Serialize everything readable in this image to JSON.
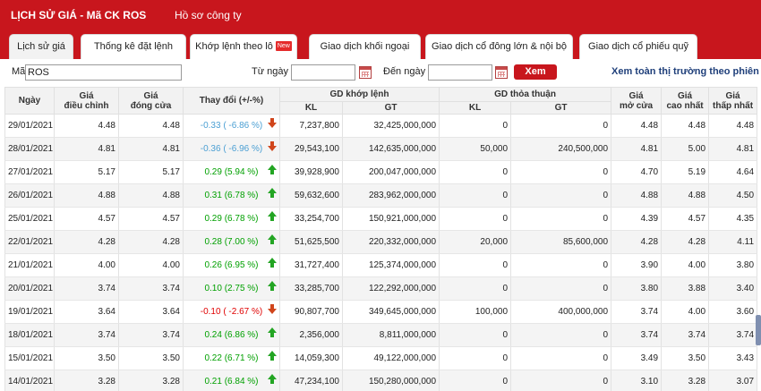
{
  "header": {
    "title": "LỊCH SỬ GIÁ - Mã CK ROS",
    "company_link": "Hồ sơ công ty"
  },
  "tabs": [
    {
      "label": "Lịch sử giá",
      "badge": ""
    },
    {
      "label": "Thống kê đặt lệnh",
      "badge": ""
    },
    {
      "label": "Khớp lệnh theo lô",
      "badge": "New"
    },
    {
      "label": "Giao dịch khối ngoại",
      "badge": ""
    },
    {
      "label": "Giao dịch cổ đông lớn & nội bộ",
      "badge": ""
    },
    {
      "label": "Giao dịch cổ phiếu quỹ",
      "badge": ""
    }
  ],
  "filter": {
    "code_label": "Mã",
    "code_value": "ROS",
    "from_label": "Từ ngày",
    "from_value": "",
    "to_label": "Đến ngày",
    "to_value": "",
    "submit_label": "Xem",
    "view_all_label": "Xem toàn thị trường theo phiên"
  },
  "table": {
    "headers": {
      "date": "Ngày",
      "adj_price": [
        "Giá",
        "điều chỉnh"
      ],
      "close_price": [
        "Giá",
        "đóng cửa"
      ],
      "change": "Thay đổi (+/-%)",
      "matched": "GD khớp lệnh",
      "negotiated": "GD thỏa thuận",
      "kl": "KL",
      "gt": "GT",
      "open_price": [
        "Giá",
        "mở cửa"
      ],
      "high_price": [
        "Giá",
        "cao nhất"
      ],
      "low_price": [
        "Giá",
        "thấp nhất"
      ]
    },
    "rows": [
      {
        "date": "29/01/2021",
        "adj": "4.48",
        "close": "4.48",
        "change": "-0.33 ( -6.86 %)",
        "dir": "down",
        "tone": "blue",
        "m_kl": "7,237,800",
        "m_gt": "32,425,000,000",
        "n_kl": "0",
        "n_gt": "0",
        "open": "4.48",
        "high": "4.48",
        "low": "4.48"
      },
      {
        "date": "28/01/2021",
        "adj": "4.81",
        "close": "4.81",
        "change": "-0.36 ( -6.96 %)",
        "dir": "down",
        "tone": "blue",
        "m_kl": "29,543,100",
        "m_gt": "142,635,000,000",
        "n_kl": "50,000",
        "n_gt": "240,500,000",
        "open": "4.81",
        "high": "5.00",
        "low": "4.81"
      },
      {
        "date": "27/01/2021",
        "adj": "5.17",
        "close": "5.17",
        "change": "0.29 (5.94 %)",
        "dir": "up",
        "tone": "up",
        "m_kl": "39,928,900",
        "m_gt": "200,047,000,000",
        "n_kl": "0",
        "n_gt": "0",
        "open": "4.70",
        "high": "5.19",
        "low": "4.64"
      },
      {
        "date": "26/01/2021",
        "adj": "4.88",
        "close": "4.88",
        "change": "0.31 (6.78 %)",
        "dir": "up",
        "tone": "up",
        "m_kl": "59,632,600",
        "m_gt": "283,962,000,000",
        "n_kl": "0",
        "n_gt": "0",
        "open": "4.88",
        "high": "4.88",
        "low": "4.50"
      },
      {
        "date": "25/01/2021",
        "adj": "4.57",
        "close": "4.57",
        "change": "0.29 (6.78 %)",
        "dir": "up",
        "tone": "up",
        "m_kl": "33,254,700",
        "m_gt": "150,921,000,000",
        "n_kl": "0",
        "n_gt": "0",
        "open": "4.39",
        "high": "4.57",
        "low": "4.35"
      },
      {
        "date": "22/01/2021",
        "adj": "4.28",
        "close": "4.28",
        "change": "0.28 (7.00 %)",
        "dir": "up",
        "tone": "up",
        "m_kl": "51,625,500",
        "m_gt": "220,332,000,000",
        "n_kl": "20,000",
        "n_gt": "85,600,000",
        "open": "4.28",
        "high": "4.28",
        "low": "4.11"
      },
      {
        "date": "21/01/2021",
        "adj": "4.00",
        "close": "4.00",
        "change": "0.26 (6.95 %)",
        "dir": "up",
        "tone": "up",
        "m_kl": "31,727,400",
        "m_gt": "125,374,000,000",
        "n_kl": "0",
        "n_gt": "0",
        "open": "3.90",
        "high": "4.00",
        "low": "3.80"
      },
      {
        "date": "20/01/2021",
        "adj": "3.74",
        "close": "3.74",
        "change": "0.10 (2.75 %)",
        "dir": "up",
        "tone": "up",
        "m_kl": "33,285,700",
        "m_gt": "122,292,000,000",
        "n_kl": "0",
        "n_gt": "0",
        "open": "3.80",
        "high": "3.88",
        "low": "3.40"
      },
      {
        "date": "19/01/2021",
        "adj": "3.64",
        "close": "3.64",
        "change": "-0.10 ( -2.67 %)",
        "dir": "down",
        "tone": "down",
        "m_kl": "90,807,700",
        "m_gt": "349,645,000,000",
        "n_kl": "100,000",
        "n_gt": "400,000,000",
        "open": "3.74",
        "high": "4.00",
        "low": "3.60"
      },
      {
        "date": "18/01/2021",
        "adj": "3.74",
        "close": "3.74",
        "change": "0.24 (6.86 %)",
        "dir": "up",
        "tone": "up",
        "m_kl": "2,356,000",
        "m_gt": "8,811,000,000",
        "n_kl": "0",
        "n_gt": "0",
        "open": "3.74",
        "high": "3.74",
        "low": "3.74"
      },
      {
        "date": "15/01/2021",
        "adj": "3.50",
        "close": "3.50",
        "change": "0.22 (6.71 %)",
        "dir": "up",
        "tone": "up",
        "m_kl": "14,059,300",
        "m_gt": "49,122,000,000",
        "n_kl": "0",
        "n_gt": "0",
        "open": "3.49",
        "high": "3.50",
        "low": "3.43"
      },
      {
        "date": "14/01/2021",
        "adj": "3.28",
        "close": "3.28",
        "change": "0.21 (6.84 %)",
        "dir": "up",
        "tone": "up",
        "m_kl": "47,234,100",
        "m_gt": "150,280,000,000",
        "n_kl": "0",
        "n_gt": "0",
        "open": "3.10",
        "high": "3.28",
        "low": "3.07"
      }
    ]
  },
  "colors": {
    "brand_red": "#c8161d",
    "up_green": "#00a000",
    "down_red": "#e00000",
    "down_light": "#4b9fd3",
    "link_blue": "#1f3f7a"
  }
}
